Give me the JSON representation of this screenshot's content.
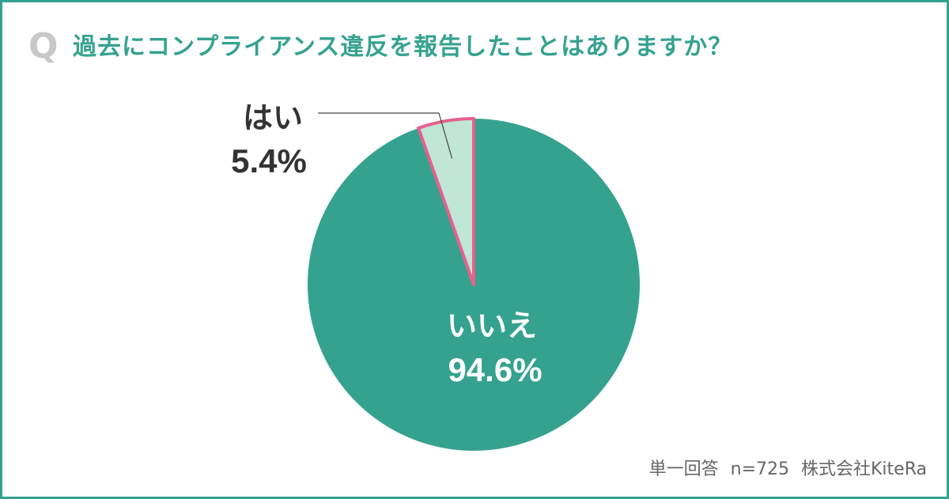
{
  "question": {
    "mark": "Q",
    "text": "過去にコンプライアンス違反を報告したことはありますか？"
  },
  "colors": {
    "frame": "#35a28f",
    "main_slice": "#35a28f",
    "minor_slice": "#bfe6d6",
    "minor_slice_border": "#e8608c",
    "label_dark": "#333333",
    "label_light": "#ffffff"
  },
  "chart_data": {
    "type": "pie",
    "slices": [
      {
        "label": "はい",
        "value": 5.4,
        "display": "5.4%"
      },
      {
        "label": "いいえ",
        "value": 94.6,
        "display": "94.6%"
      }
    ]
  },
  "footer": {
    "method": "単一回答",
    "sample": "n=725",
    "company": "株式会社KiteRa"
  }
}
